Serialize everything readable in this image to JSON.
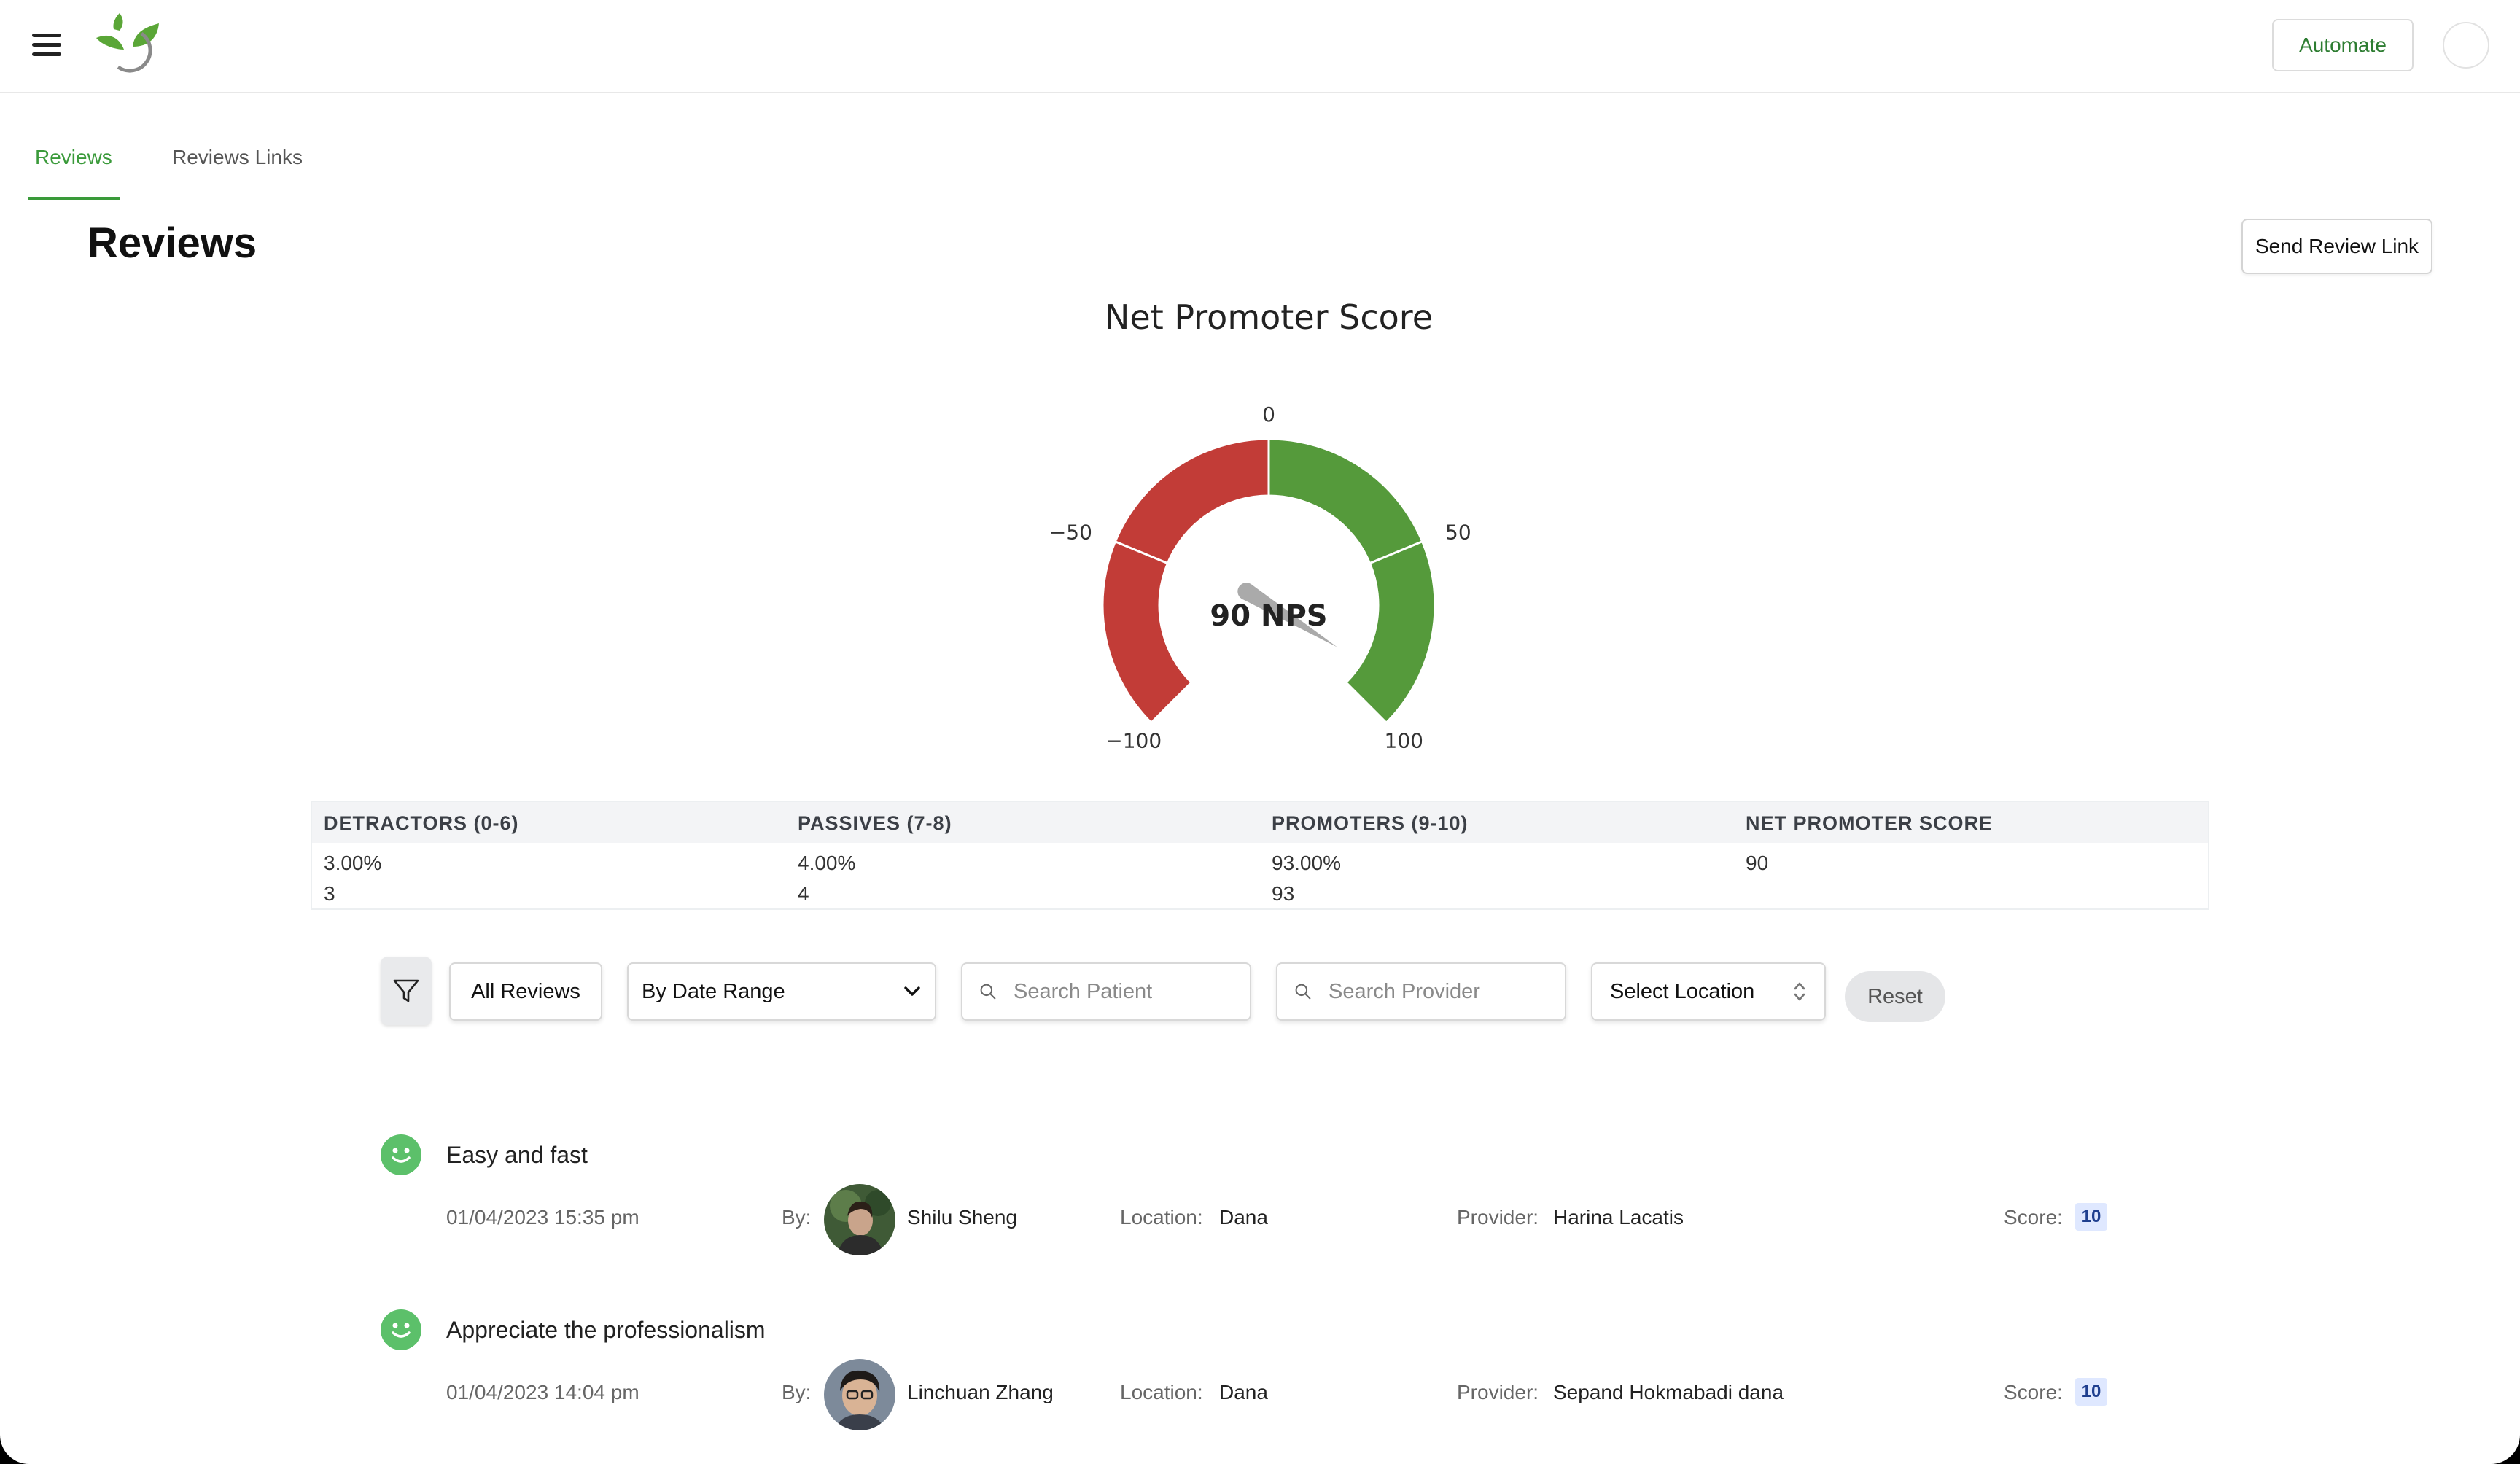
{
  "header": {
    "automate_label": "Automate"
  },
  "tabs": [
    {
      "label": "Reviews",
      "active": true
    },
    {
      "label": "Reviews Links",
      "active": false
    }
  ],
  "page": {
    "title": "Reviews",
    "send_review_link_label": "Send Review Link"
  },
  "nps_gauge": {
    "title": "Net Promoter Score",
    "value": 90,
    "value_label": "90 NPS",
    "min": -100,
    "max": 100,
    "tick_labels": [
      "−100",
      "−50",
      "0",
      "50",
      "100"
    ],
    "colors": {
      "negative": "#c23c37",
      "positive": "#559a3b",
      "needle": "#aaaaaa"
    }
  },
  "stats": {
    "columns": [
      {
        "header": "DETRACTORS (0-6)",
        "percent": "3.00%",
        "count": "3"
      },
      {
        "header": "PASSIVES (7-8)",
        "percent": "4.00%",
        "count": "4"
      },
      {
        "header": "PROMOTERS (9-10)",
        "percent": "93.00%",
        "count": "93"
      },
      {
        "header": "NET PROMOTER SCORE",
        "percent": "90",
        "count": ""
      }
    ]
  },
  "filters": {
    "all_reviews_label": "All Reviews",
    "date_range_selected": "By Date Range",
    "search_patient_placeholder": "Search Patient",
    "search_provider_placeholder": "Search Provider",
    "location_selected": "Select Location",
    "reset_label": "Reset"
  },
  "labels": {
    "by": "By:",
    "location": "Location:",
    "provider": "Provider:",
    "score": "Score:"
  },
  "reviews": [
    {
      "title": "Easy and fast",
      "datetime": "01/04/2023 15:35 pm",
      "by": "Shilu Sheng",
      "location": "Dana",
      "provider": "Harina Lacatis",
      "score": "10"
    },
    {
      "title": "Appreciate the professionalism",
      "datetime": "01/04/2023 14:04 pm",
      "by": "Linchuan Zhang",
      "location": "Dana",
      "provider": "Sepand Hokmabadi dana",
      "score": "10"
    }
  ],
  "accent_color": "#3a9a3a"
}
